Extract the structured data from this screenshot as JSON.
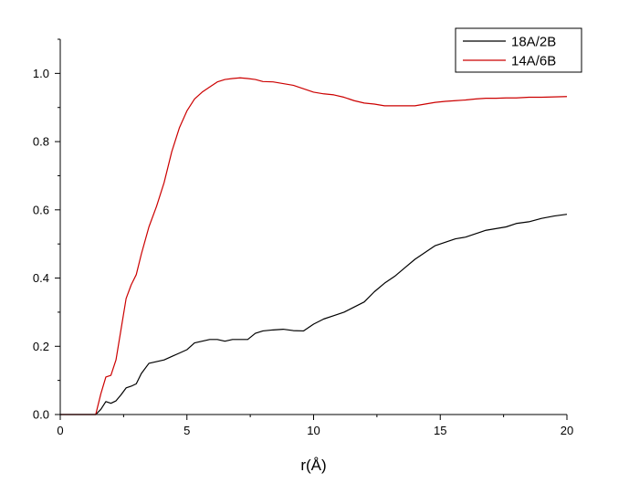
{
  "chart_data": {
    "type": "line",
    "title": "",
    "xlabel": "r(Å)",
    "ylabel": "",
    "xlim": [
      0,
      20
    ],
    "ylim": [
      0,
      1.1
    ],
    "x_ticks": [
      0,
      5,
      10,
      15,
      20
    ],
    "x_tick_labels": [
      "0",
      "5",
      "10",
      "15",
      "20"
    ],
    "y_ticks": [
      0.0,
      0.2,
      0.4,
      0.6,
      0.8,
      1.0
    ],
    "y_tick_labels": [
      "0.0",
      "0.2",
      "0.4",
      "0.6",
      "0.8",
      "1.0"
    ],
    "grid": false,
    "legend_position": "top-right",
    "series": [
      {
        "name": "18A/2B",
        "color": "#000000",
        "x": [
          0,
          1.4,
          1.6,
          1.8,
          2.0,
          2.2,
          2.4,
          2.6,
          2.8,
          3.0,
          3.2,
          3.5,
          3.8,
          4.1,
          4.4,
          4.7,
          5.0,
          5.3,
          5.6,
          5.9,
          6.2,
          6.5,
          6.8,
          7.1,
          7.4,
          7.7,
          8.0,
          8.4,
          8.8,
          9.2,
          9.6,
          10.0,
          10.4,
          10.8,
          11.2,
          11.6,
          12.0,
          12.4,
          12.8,
          13.2,
          13.6,
          14.0,
          14.4,
          14.8,
          15.2,
          15.6,
          16.0,
          16.4,
          16.8,
          17.2,
          17.6,
          18.0,
          18.5,
          19.0,
          19.5,
          20.0
        ],
        "y": [
          0.0,
          0.0,
          0.015,
          0.038,
          0.033,
          0.04,
          0.058,
          0.078,
          0.083,
          0.09,
          0.12,
          0.15,
          0.155,
          0.16,
          0.17,
          0.18,
          0.19,
          0.21,
          0.215,
          0.22,
          0.22,
          0.215,
          0.22,
          0.22,
          0.22,
          0.238,
          0.245,
          0.248,
          0.25,
          0.246,
          0.245,
          0.265,
          0.28,
          0.29,
          0.3,
          0.315,
          0.33,
          0.36,
          0.385,
          0.405,
          0.43,
          0.455,
          0.475,
          0.495,
          0.505,
          0.515,
          0.52,
          0.53,
          0.54,
          0.545,
          0.55,
          0.56,
          0.565,
          0.575,
          0.582,
          0.587
        ]
      },
      {
        "name": "14A/6B",
        "color": "#cc0000",
        "x": [
          0,
          1.4,
          1.6,
          1.8,
          2.0,
          2.2,
          2.4,
          2.6,
          2.8,
          3.0,
          3.2,
          3.5,
          3.8,
          4.1,
          4.4,
          4.7,
          5.0,
          5.3,
          5.6,
          5.9,
          6.2,
          6.5,
          6.8,
          7.1,
          7.4,
          7.7,
          8.0,
          8.4,
          8.8,
          9.2,
          9.6,
          10.0,
          10.4,
          10.8,
          11.2,
          11.6,
          12.0,
          12.4,
          12.8,
          13.2,
          13.6,
          14.0,
          14.4,
          14.8,
          15.2,
          15.6,
          16.0,
          16.4,
          16.8,
          17.2,
          17.6,
          18.0,
          18.5,
          19.0,
          19.5,
          20.0
        ],
        "y": [
          0.0,
          0.0,
          0.06,
          0.11,
          0.115,
          0.16,
          0.25,
          0.34,
          0.38,
          0.41,
          0.47,
          0.55,
          0.61,
          0.68,
          0.77,
          0.84,
          0.89,
          0.925,
          0.945,
          0.96,
          0.975,
          0.982,
          0.985,
          0.987,
          0.985,
          0.982,
          0.976,
          0.975,
          0.97,
          0.965,
          0.955,
          0.945,
          0.94,
          0.937,
          0.93,
          0.92,
          0.913,
          0.91,
          0.905,
          0.905,
          0.905,
          0.905,
          0.91,
          0.915,
          0.918,
          0.92,
          0.922,
          0.925,
          0.927,
          0.927,
          0.928,
          0.928,
          0.93,
          0.93,
          0.931,
          0.932
        ]
      }
    ]
  }
}
